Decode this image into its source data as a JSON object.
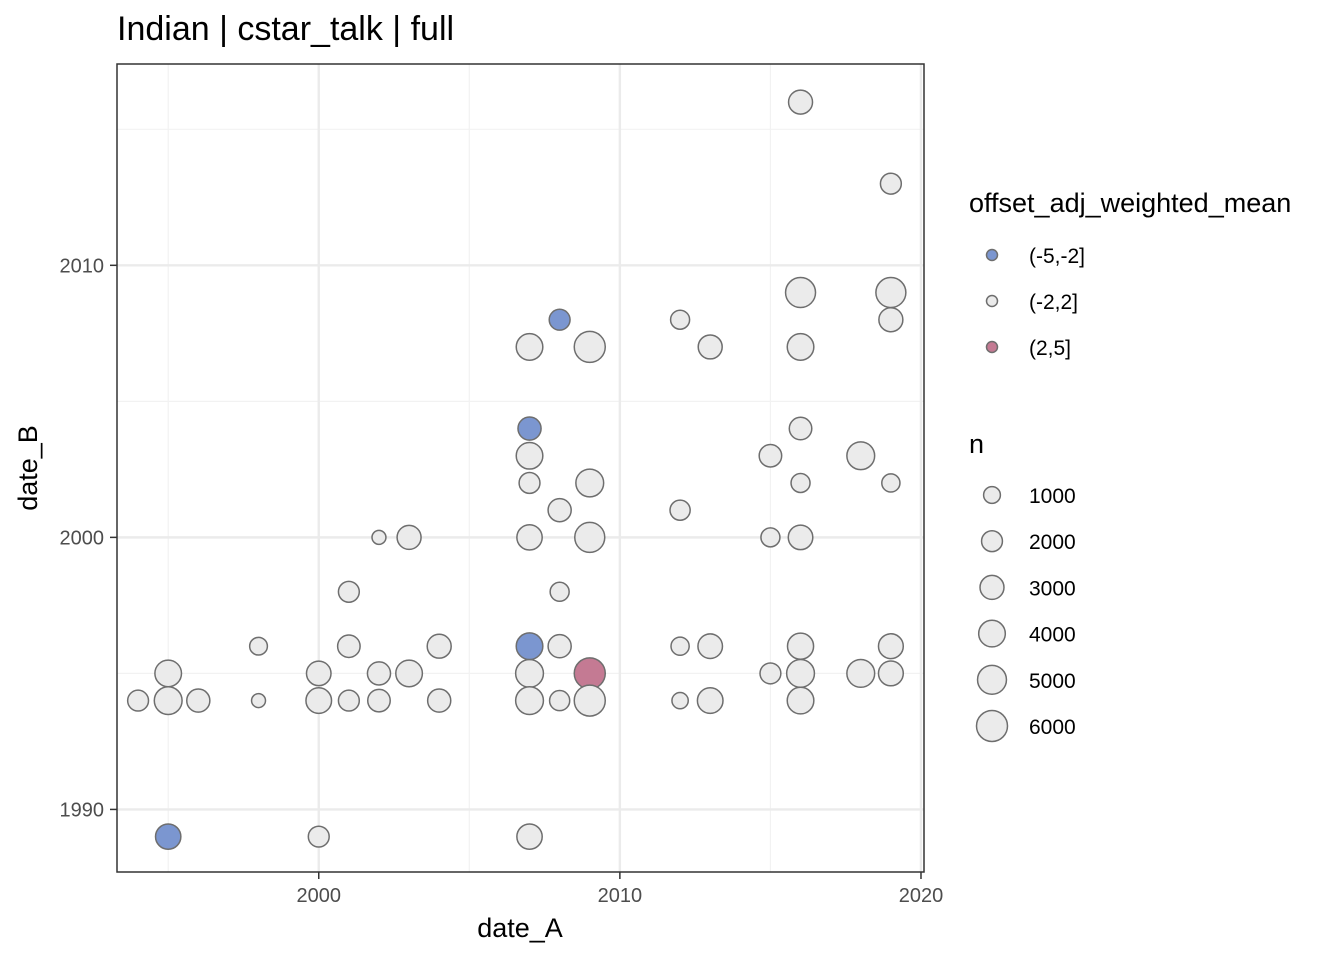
{
  "chart_data": {
    "type": "scatter",
    "title": "Indian | cstar_talk | full",
    "xlabel": "date_A",
    "ylabel": "date_B",
    "xlim": [
      1993.3,
      2020.1
    ],
    "ylim": [
      1987.7,
      2017.4
    ],
    "x_ticks": [
      2000,
      2010,
      2020
    ],
    "y_ticks": [
      1990,
      2000,
      2010
    ],
    "x_tick_labels": [
      "2000",
      "2010",
      "2020"
    ],
    "y_tick_labels": [
      "1990",
      "2000",
      "2010"
    ],
    "grid": true,
    "legend_position": "right",
    "color_legend": {
      "title": "offset_adj_weighted_mean",
      "entries": [
        {
          "label": "(-5,-2]",
          "color": "#7b96d0"
        },
        {
          "label": "(-2,2]",
          "color": "#ebebeb"
        },
        {
          "label": "(2,5]",
          "color": "#c47a93"
        }
      ]
    },
    "size_legend": {
      "title": "n",
      "entries": [
        {
          "label": "1000",
          "value": 1000
        },
        {
          "label": "2000",
          "value": 2000
        },
        {
          "label": "3000",
          "value": 3000
        },
        {
          "label": "4000",
          "value": 4000
        },
        {
          "label": "5000",
          "value": 5000
        },
        {
          "label": "6000",
          "value": 6000
        }
      ]
    },
    "points": [
      {
        "x": 2016,
        "y": 2016,
        "n": 3000,
        "group": "(-2,2]"
      },
      {
        "x": 2019,
        "y": 2013,
        "n": 2000,
        "group": "(-2,2]"
      },
      {
        "x": 2016,
        "y": 2009,
        "n": 5500,
        "group": "(-2,2]"
      },
      {
        "x": 2019,
        "y": 2009,
        "n": 5500,
        "group": "(-2,2]"
      },
      {
        "x": 2008,
        "y": 2008,
        "n": 2000,
        "group": "(-5,-2]"
      },
      {
        "x": 2012,
        "y": 2008,
        "n": 1500,
        "group": "(-2,2]"
      },
      {
        "x": 2019,
        "y": 2008,
        "n": 3000,
        "group": "(-2,2]"
      },
      {
        "x": 2007,
        "y": 2007,
        "n": 4000,
        "group": "(-2,2]"
      },
      {
        "x": 2009,
        "y": 2007,
        "n": 6000,
        "group": "(-2,2]"
      },
      {
        "x": 2013,
        "y": 2007,
        "n": 3000,
        "group": "(-2,2]"
      },
      {
        "x": 2016,
        "y": 2007,
        "n": 4000,
        "group": "(-2,2]"
      },
      {
        "x": 2007,
        "y": 2004,
        "n": 2700,
        "group": "(-5,-2]"
      },
      {
        "x": 2016,
        "y": 2004,
        "n": 2500,
        "group": "(-2,2]"
      },
      {
        "x": 2007,
        "y": 2003,
        "n": 4000,
        "group": "(-2,2]"
      },
      {
        "x": 2015,
        "y": 2003,
        "n": 2500,
        "group": "(-2,2]"
      },
      {
        "x": 2018,
        "y": 2003,
        "n": 4500,
        "group": "(-2,2]"
      },
      {
        "x": 2007,
        "y": 2002,
        "n": 2000,
        "group": "(-2,2]"
      },
      {
        "x": 2009,
        "y": 2002,
        "n": 4500,
        "group": "(-2,2]"
      },
      {
        "x": 2016,
        "y": 2002,
        "n": 1500,
        "group": "(-2,2]"
      },
      {
        "x": 2019,
        "y": 2002,
        "n": 1300,
        "group": "(-2,2]"
      },
      {
        "x": 2008,
        "y": 2001,
        "n": 2700,
        "group": "(-2,2]"
      },
      {
        "x": 2012,
        "y": 2001,
        "n": 1800,
        "group": "(-2,2]"
      },
      {
        "x": 2002,
        "y": 2000,
        "n": 500,
        "group": "(-2,2]"
      },
      {
        "x": 2003,
        "y": 2000,
        "n": 3000,
        "group": "(-2,2]"
      },
      {
        "x": 2007,
        "y": 2000,
        "n": 3500,
        "group": "(-2,2]"
      },
      {
        "x": 2009,
        "y": 2000,
        "n": 5500,
        "group": "(-2,2]"
      },
      {
        "x": 2015,
        "y": 2000,
        "n": 1500,
        "group": "(-2,2]"
      },
      {
        "x": 2016,
        "y": 2000,
        "n": 3200,
        "group": "(-2,2]"
      },
      {
        "x": 2001,
        "y": 1998,
        "n": 2000,
        "group": "(-2,2]"
      },
      {
        "x": 2008,
        "y": 1998,
        "n": 1500,
        "group": "(-2,2]"
      },
      {
        "x": 1998,
        "y": 1996,
        "n": 1200,
        "group": "(-2,2]"
      },
      {
        "x": 2001,
        "y": 1996,
        "n": 2500,
        "group": "(-2,2]"
      },
      {
        "x": 2004,
        "y": 1996,
        "n": 3000,
        "group": "(-2,2]"
      },
      {
        "x": 2007,
        "y": 1996,
        "n": 4000,
        "group": "(-5,-2]"
      },
      {
        "x": 2008,
        "y": 1996,
        "n": 2700,
        "group": "(-2,2]"
      },
      {
        "x": 2012,
        "y": 1996,
        "n": 1300,
        "group": "(-2,2]"
      },
      {
        "x": 2013,
        "y": 1996,
        "n": 3200,
        "group": "(-2,2]"
      },
      {
        "x": 2016,
        "y": 1996,
        "n": 3800,
        "group": "(-2,2]"
      },
      {
        "x": 2019,
        "y": 1996,
        "n": 3300,
        "group": "(-2,2]"
      },
      {
        "x": 1995,
        "y": 1995,
        "n": 4000,
        "group": "(-2,2]"
      },
      {
        "x": 2000,
        "y": 1995,
        "n": 3200,
        "group": "(-2,2]"
      },
      {
        "x": 2002,
        "y": 1995,
        "n": 2700,
        "group": "(-2,2]"
      },
      {
        "x": 2003,
        "y": 1995,
        "n": 4000,
        "group": "(-2,2]"
      },
      {
        "x": 2007,
        "y": 1995,
        "n": 4500,
        "group": "(-2,2]"
      },
      {
        "x": 2009,
        "y": 1995,
        "n": 6000,
        "group": "(2,5]"
      },
      {
        "x": 2015,
        "y": 1995,
        "n": 2000,
        "group": "(-2,2]"
      },
      {
        "x": 2016,
        "y": 1995,
        "n": 4500,
        "group": "(-2,2]"
      },
      {
        "x": 2018,
        "y": 1995,
        "n": 4500,
        "group": "(-2,2]"
      },
      {
        "x": 2019,
        "y": 1995,
        "n": 3300,
        "group": "(-2,2]"
      },
      {
        "x": 1994,
        "y": 1994,
        "n": 2000,
        "group": "(-2,2]"
      },
      {
        "x": 1995,
        "y": 1994,
        "n": 4500,
        "group": "(-2,2]"
      },
      {
        "x": 1996,
        "y": 1994,
        "n": 2700,
        "group": "(-2,2]"
      },
      {
        "x": 1998,
        "y": 1994,
        "n": 500,
        "group": "(-2,2]"
      },
      {
        "x": 2000,
        "y": 1994,
        "n": 3600,
        "group": "(-2,2]"
      },
      {
        "x": 2001,
        "y": 1994,
        "n": 2000,
        "group": "(-2,2]"
      },
      {
        "x": 2002,
        "y": 1994,
        "n": 2500,
        "group": "(-2,2]"
      },
      {
        "x": 2004,
        "y": 1994,
        "n": 2700,
        "group": "(-2,2]"
      },
      {
        "x": 2007,
        "y": 1994,
        "n": 4500,
        "group": "(-2,2]"
      },
      {
        "x": 2008,
        "y": 1994,
        "n": 1800,
        "group": "(-2,2]"
      },
      {
        "x": 2009,
        "y": 1994,
        "n": 6000,
        "group": "(-2,2]"
      },
      {
        "x": 2012,
        "y": 1994,
        "n": 900,
        "group": "(-2,2]"
      },
      {
        "x": 2013,
        "y": 1994,
        "n": 3600,
        "group": "(-2,2]"
      },
      {
        "x": 2016,
        "y": 1994,
        "n": 4000,
        "group": "(-2,2]"
      },
      {
        "x": 1995,
        "y": 1989,
        "n": 3500,
        "group": "(-5,-2]"
      },
      {
        "x": 2000,
        "y": 1989,
        "n": 2000,
        "group": "(-2,2]"
      },
      {
        "x": 2007,
        "y": 1989,
        "n": 3500,
        "group": "(-2,2]"
      }
    ]
  }
}
